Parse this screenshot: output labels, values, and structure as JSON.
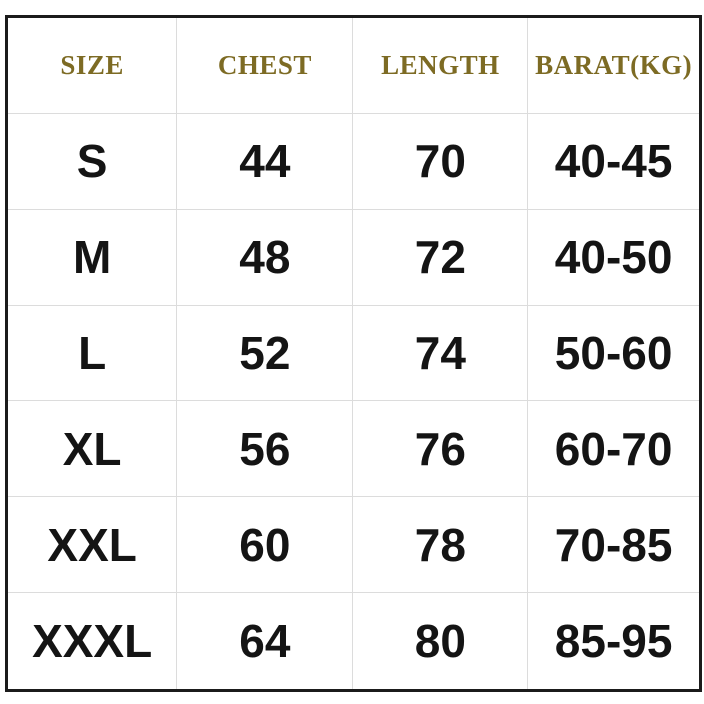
{
  "chart_data": {
    "type": "table",
    "columns": [
      "SIZE",
      "CHEST",
      "LENGTH",
      "BARAT(KG)"
    ],
    "rows": [
      [
        "S",
        "44",
        "70",
        "40-45"
      ],
      [
        "M",
        "48",
        "72",
        "40-50"
      ],
      [
        "L",
        "52",
        "74",
        "50-60"
      ],
      [
        "XL",
        "56",
        "76",
        "60-70"
      ],
      [
        "XXL",
        "60",
        "78",
        "70-85"
      ],
      [
        "XXXL",
        "64",
        "80",
        "85-95"
      ]
    ]
  },
  "colors": {
    "header_text": "#7d6b24",
    "body_text": "#141414",
    "grid_line": "#dcdcdc",
    "outer_border": "#1b1b1b",
    "background": "#ffffff"
  }
}
